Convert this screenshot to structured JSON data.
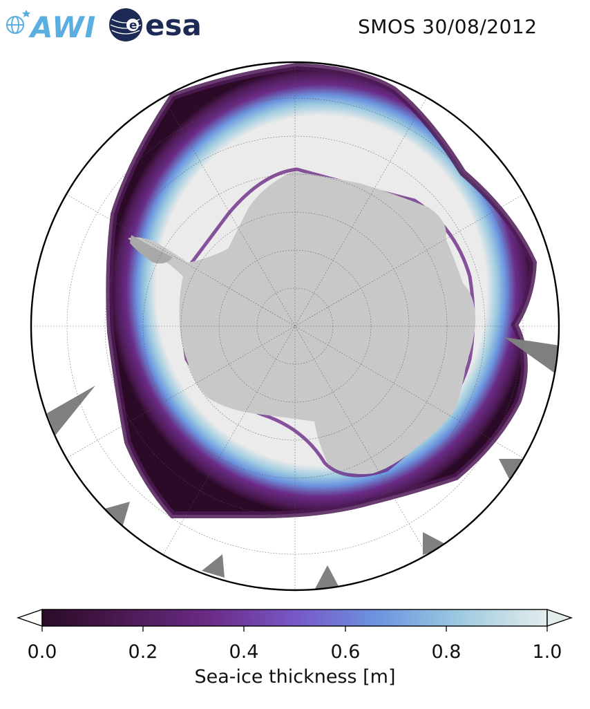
{
  "header": {
    "title": "SMOS 30/08/2012",
    "logos": [
      {
        "name": "AWI",
        "text": "AWI"
      },
      {
        "name": "esa",
        "text": "esa"
      }
    ]
  },
  "map": {
    "projection": "south-polar-stereographic",
    "ocean_color": "#ffffff",
    "land_color": "#c8c8c8",
    "ice_high_color": "#ebebeb",
    "missing_data_color": "#808080",
    "graticule": "on"
  },
  "colorbar": {
    "label": "Sea-ice thickness [m]",
    "ticks": [
      "0.0",
      "0.2",
      "0.4",
      "0.6",
      "0.8",
      "1.0"
    ],
    "range": [
      0.0,
      1.0
    ],
    "extend": "both",
    "colormap": [
      "#2a0a26",
      "#4d1a55",
      "#6a2b86",
      "#7757c6",
      "#6c96e0",
      "#9ecbe0",
      "#e4ecec"
    ]
  }
}
